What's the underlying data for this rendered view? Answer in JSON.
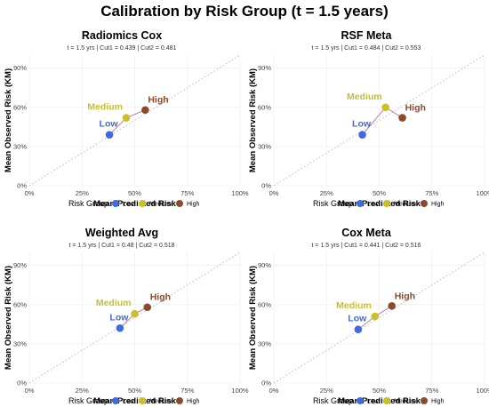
{
  "title": "Calibration by Risk Group (t = 1.5 years)",
  "colors": {
    "Low": "#4169E1",
    "Medium": "#C9C12A",
    "High": "#8B4A2B"
  },
  "chart_data": [
    {
      "type": "scatter",
      "title": "Radiomics Cox",
      "subtitle": "t = 1.5 yrs | Cut1 = 0.439 | Cut2 = 0.481",
      "xlabel": "Mean Predicted Risk",
      "ylabel": "Mean Observed Risk (KM)",
      "xlim": [
        0,
        1
      ],
      "ylim": [
        0,
        1
      ],
      "xticks": [
        "0%",
        "25%",
        "50%",
        "75%",
        "100%"
      ],
      "yticks": [
        "0%",
        "30%",
        "60%",
        "90%"
      ],
      "reference_line": "identity (dotted)",
      "points": [
        {
          "group": "Low",
          "x": 0.38,
          "y": 0.39
        },
        {
          "group": "Medium",
          "x": 0.46,
          "y": 0.52
        },
        {
          "group": "High",
          "x": 0.55,
          "y": 0.58
        }
      ],
      "legend": {
        "title": "Risk Group",
        "entries": [
          "Low",
          "Medium",
          "High"
        ],
        "position": "bottom"
      }
    },
    {
      "type": "scatter",
      "title": "RSF Meta",
      "subtitle": "t = 1.5 yrs | Cut1 = 0.484 | Cut2 = 0.553",
      "xlabel": "Mean Predicted Risk",
      "ylabel": "Mean Observed Risk (KM)",
      "xlim": [
        0,
        1
      ],
      "ylim": [
        0,
        1
      ],
      "xticks": [
        "0%",
        "25%",
        "50%",
        "75%",
        "100%"
      ],
      "yticks": [
        "0%",
        "30%",
        "60%",
        "90%"
      ],
      "reference_line": "identity (dotted)",
      "points": [
        {
          "group": "Low",
          "x": 0.42,
          "y": 0.39
        },
        {
          "group": "Medium",
          "x": 0.53,
          "y": 0.6
        },
        {
          "group": "High",
          "x": 0.61,
          "y": 0.52
        }
      ],
      "legend": {
        "title": "Risk Group",
        "entries": [
          "Low",
          "Medium",
          "High"
        ],
        "position": "bottom"
      }
    },
    {
      "type": "scatter",
      "title": "Weighted Avg",
      "subtitle": "t = 1.5 yrs | Cut1 = 0.48 | Cut2 = 0.518",
      "xlabel": "Mean Predicted Risk",
      "ylabel": "Mean Observed Risk (KM)",
      "xlim": [
        0,
        1
      ],
      "ylim": [
        0,
        1
      ],
      "xticks": [
        "0%",
        "25%",
        "50%",
        "75%",
        "100%"
      ],
      "yticks": [
        "0%",
        "30%",
        "60%",
        "90%"
      ],
      "reference_line": "identity (dotted)",
      "points": [
        {
          "group": "Low",
          "x": 0.43,
          "y": 0.42
        },
        {
          "group": "Medium",
          "x": 0.5,
          "y": 0.53
        },
        {
          "group": "High",
          "x": 0.56,
          "y": 0.58
        }
      ],
      "legend": {
        "title": "Risk Group",
        "entries": [
          "Low",
          "Medium",
          "High"
        ],
        "position": "bottom"
      }
    },
    {
      "type": "scatter",
      "title": "Cox Meta",
      "subtitle": "t = 1.5 yrs | Cut1 = 0.441 | Cut2 = 0.516",
      "xlabel": "Mean Predicted Risk",
      "ylabel": "Mean Observed Risk (KM)",
      "xlim": [
        0,
        1
      ],
      "ylim": [
        0,
        1
      ],
      "xticks": [
        "0%",
        "25%",
        "50%",
        "75%",
        "100%"
      ],
      "yticks": [
        "0%",
        "30%",
        "60%",
        "90%"
      ],
      "reference_line": "identity (dotted)",
      "points": [
        {
          "group": "Low",
          "x": 0.4,
          "y": 0.41
        },
        {
          "group": "Medium",
          "x": 0.48,
          "y": 0.51
        },
        {
          "group": "High",
          "x": 0.56,
          "y": 0.59
        }
      ],
      "legend": {
        "title": "Risk Group",
        "entries": [
          "Low",
          "Medium",
          "High"
        ],
        "position": "bottom"
      }
    }
  ]
}
